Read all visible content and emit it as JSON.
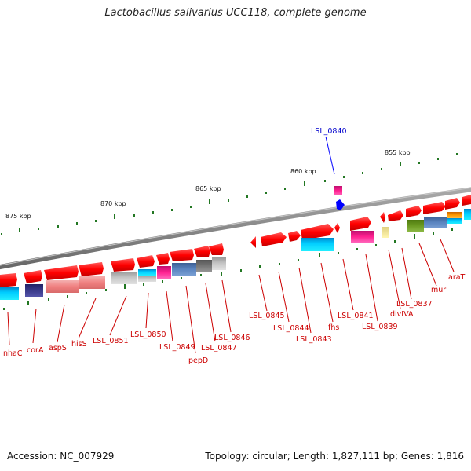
{
  "title": "Lactobacillus salivarius UCC118, complete genome",
  "accession": "Accession: NC_007929",
  "topology": "Topology: circular; Length: 1,827,111 bp; Genes: 1,816",
  "colors": {
    "backbone": "#888888",
    "gene_red": "#ff0000",
    "highlight_blue": "#0000ff",
    "label_red": "#cc0000",
    "tick_green": "#227722"
  },
  "kbp_ticks": [
    "875 kbp",
    "870 kbp",
    "865 kbp",
    "860 kbp",
    "855 kbp"
  ],
  "gene_labels": [
    {
      "id": "nhaC",
      "text": "nhaC"
    },
    {
      "id": "corA",
      "text": "corA"
    },
    {
      "id": "aspS",
      "text": "aspS"
    },
    {
      "id": "hisS",
      "text": "hisS"
    },
    {
      "id": "LSL_0851",
      "text": "LSL_0851"
    },
    {
      "id": "LSL_0850",
      "text": "LSL_0850"
    },
    {
      "id": "LSL_0849",
      "text": "LSL_0849"
    },
    {
      "id": "pepD",
      "text": "pepD"
    },
    {
      "id": "LSL_0847",
      "text": "LSL_0847"
    },
    {
      "id": "LSL_0846",
      "text": "LSL_0846"
    },
    {
      "id": "LSL_0845",
      "text": "LSL_0845"
    },
    {
      "id": "LSL_0844",
      "text": "LSL_0844"
    },
    {
      "id": "LSL_0843",
      "text": "LSL_0843"
    },
    {
      "id": "fhs",
      "text": "fhs"
    },
    {
      "id": "LSL_0841",
      "text": "LSL_0841"
    },
    {
      "id": "LSL_0839",
      "text": "LSL_0839"
    },
    {
      "id": "divIVA",
      "text": "divIVA"
    },
    {
      "id": "LSL_0837",
      "text": "LSL_0837"
    },
    {
      "id": "murI",
      "text": "murI"
    },
    {
      "id": "araT",
      "text": "araT"
    }
  ],
  "highlight_label": {
    "id": "LSL_0840",
    "text": "LSL_0840"
  }
}
